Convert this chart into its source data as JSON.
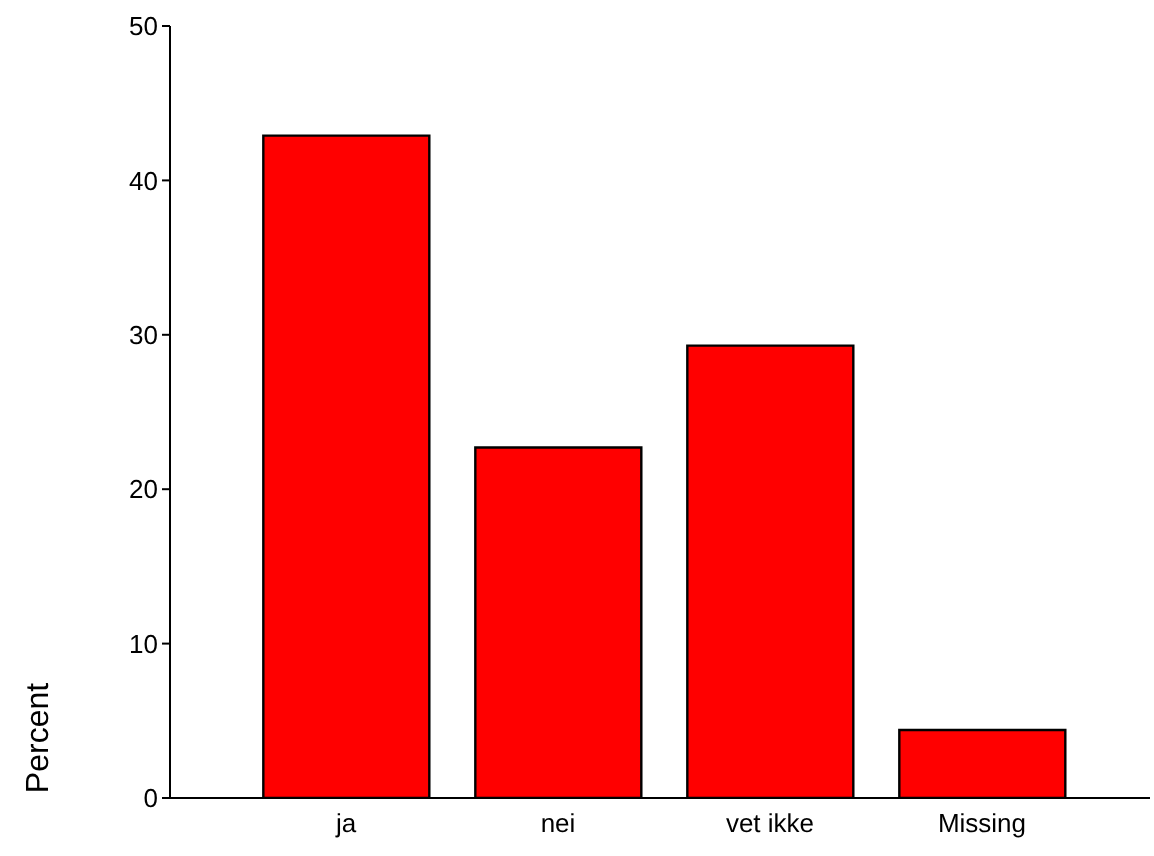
{
  "chart_data": {
    "type": "bar",
    "ylabel": "Percent",
    "categories": [
      "ja",
      "nei",
      "vet ikke",
      "Missing"
    ],
    "values": [
      42.9,
      22.7,
      29.3,
      4.4
    ],
    "color": "#ff0000",
    "ylim": [
      0,
      50
    ],
    "yticks": [
      0,
      10,
      20,
      30,
      40,
      50
    ],
    "grid": false,
    "legend": false
  }
}
